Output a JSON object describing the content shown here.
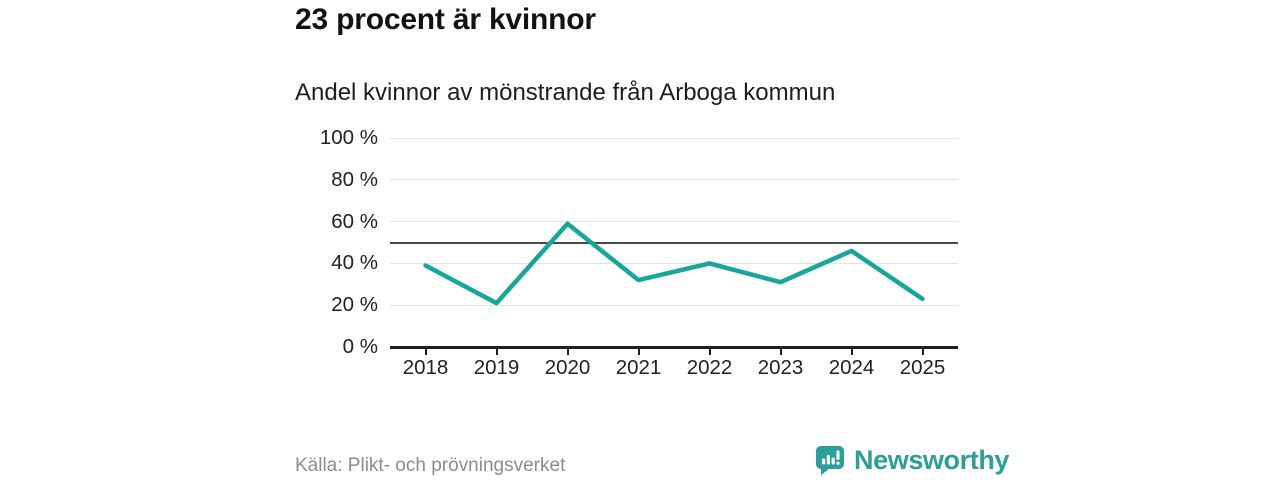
{
  "header": {
    "title": "23 procent är kvinnor",
    "subtitle": "Andel kvinnor av mönstrande från Arboga kommun"
  },
  "chart_data": {
    "type": "line",
    "title": "23 procent är kvinnor",
    "subtitle": "Andel kvinnor av mönstrande från Arboga kommun",
    "categories": [
      "2018",
      "2019",
      "2020",
      "2021",
      "2022",
      "2023",
      "2024",
      "2025"
    ],
    "series": [
      {
        "name": "Andel kvinnor av mönstrande",
        "values": [
          39,
          21,
          59,
          32,
          40,
          31,
          46,
          23
        ]
      }
    ],
    "unit": "%",
    "ylim": [
      0,
      100
    ],
    "yticks": [
      0,
      20,
      40,
      60,
      80,
      100
    ],
    "ytick_labels": [
      "0 %",
      "20 %",
      "40 %",
      "60 %",
      "80 %",
      "100 %"
    ],
    "reference_line": 50,
    "grid": "horizontal-only",
    "legend": "none",
    "line_color": "#18a59a"
  },
  "footer": {
    "source": "Källa: Plikt- och prövningsverket",
    "brand_name": "Newsworthy",
    "brand_icon": "newsworthy-speech-bubble-bar-chart-icon",
    "brand_color": "#2e9f98"
  },
  "colors": {
    "accent_teal": "#18a59a",
    "reference_line": "#4a4a4a",
    "gridline": "#e2e2e2",
    "axis": "#1f1f1f",
    "text_dark": "#1e1e1e",
    "source_text": "#8c8c8c"
  }
}
